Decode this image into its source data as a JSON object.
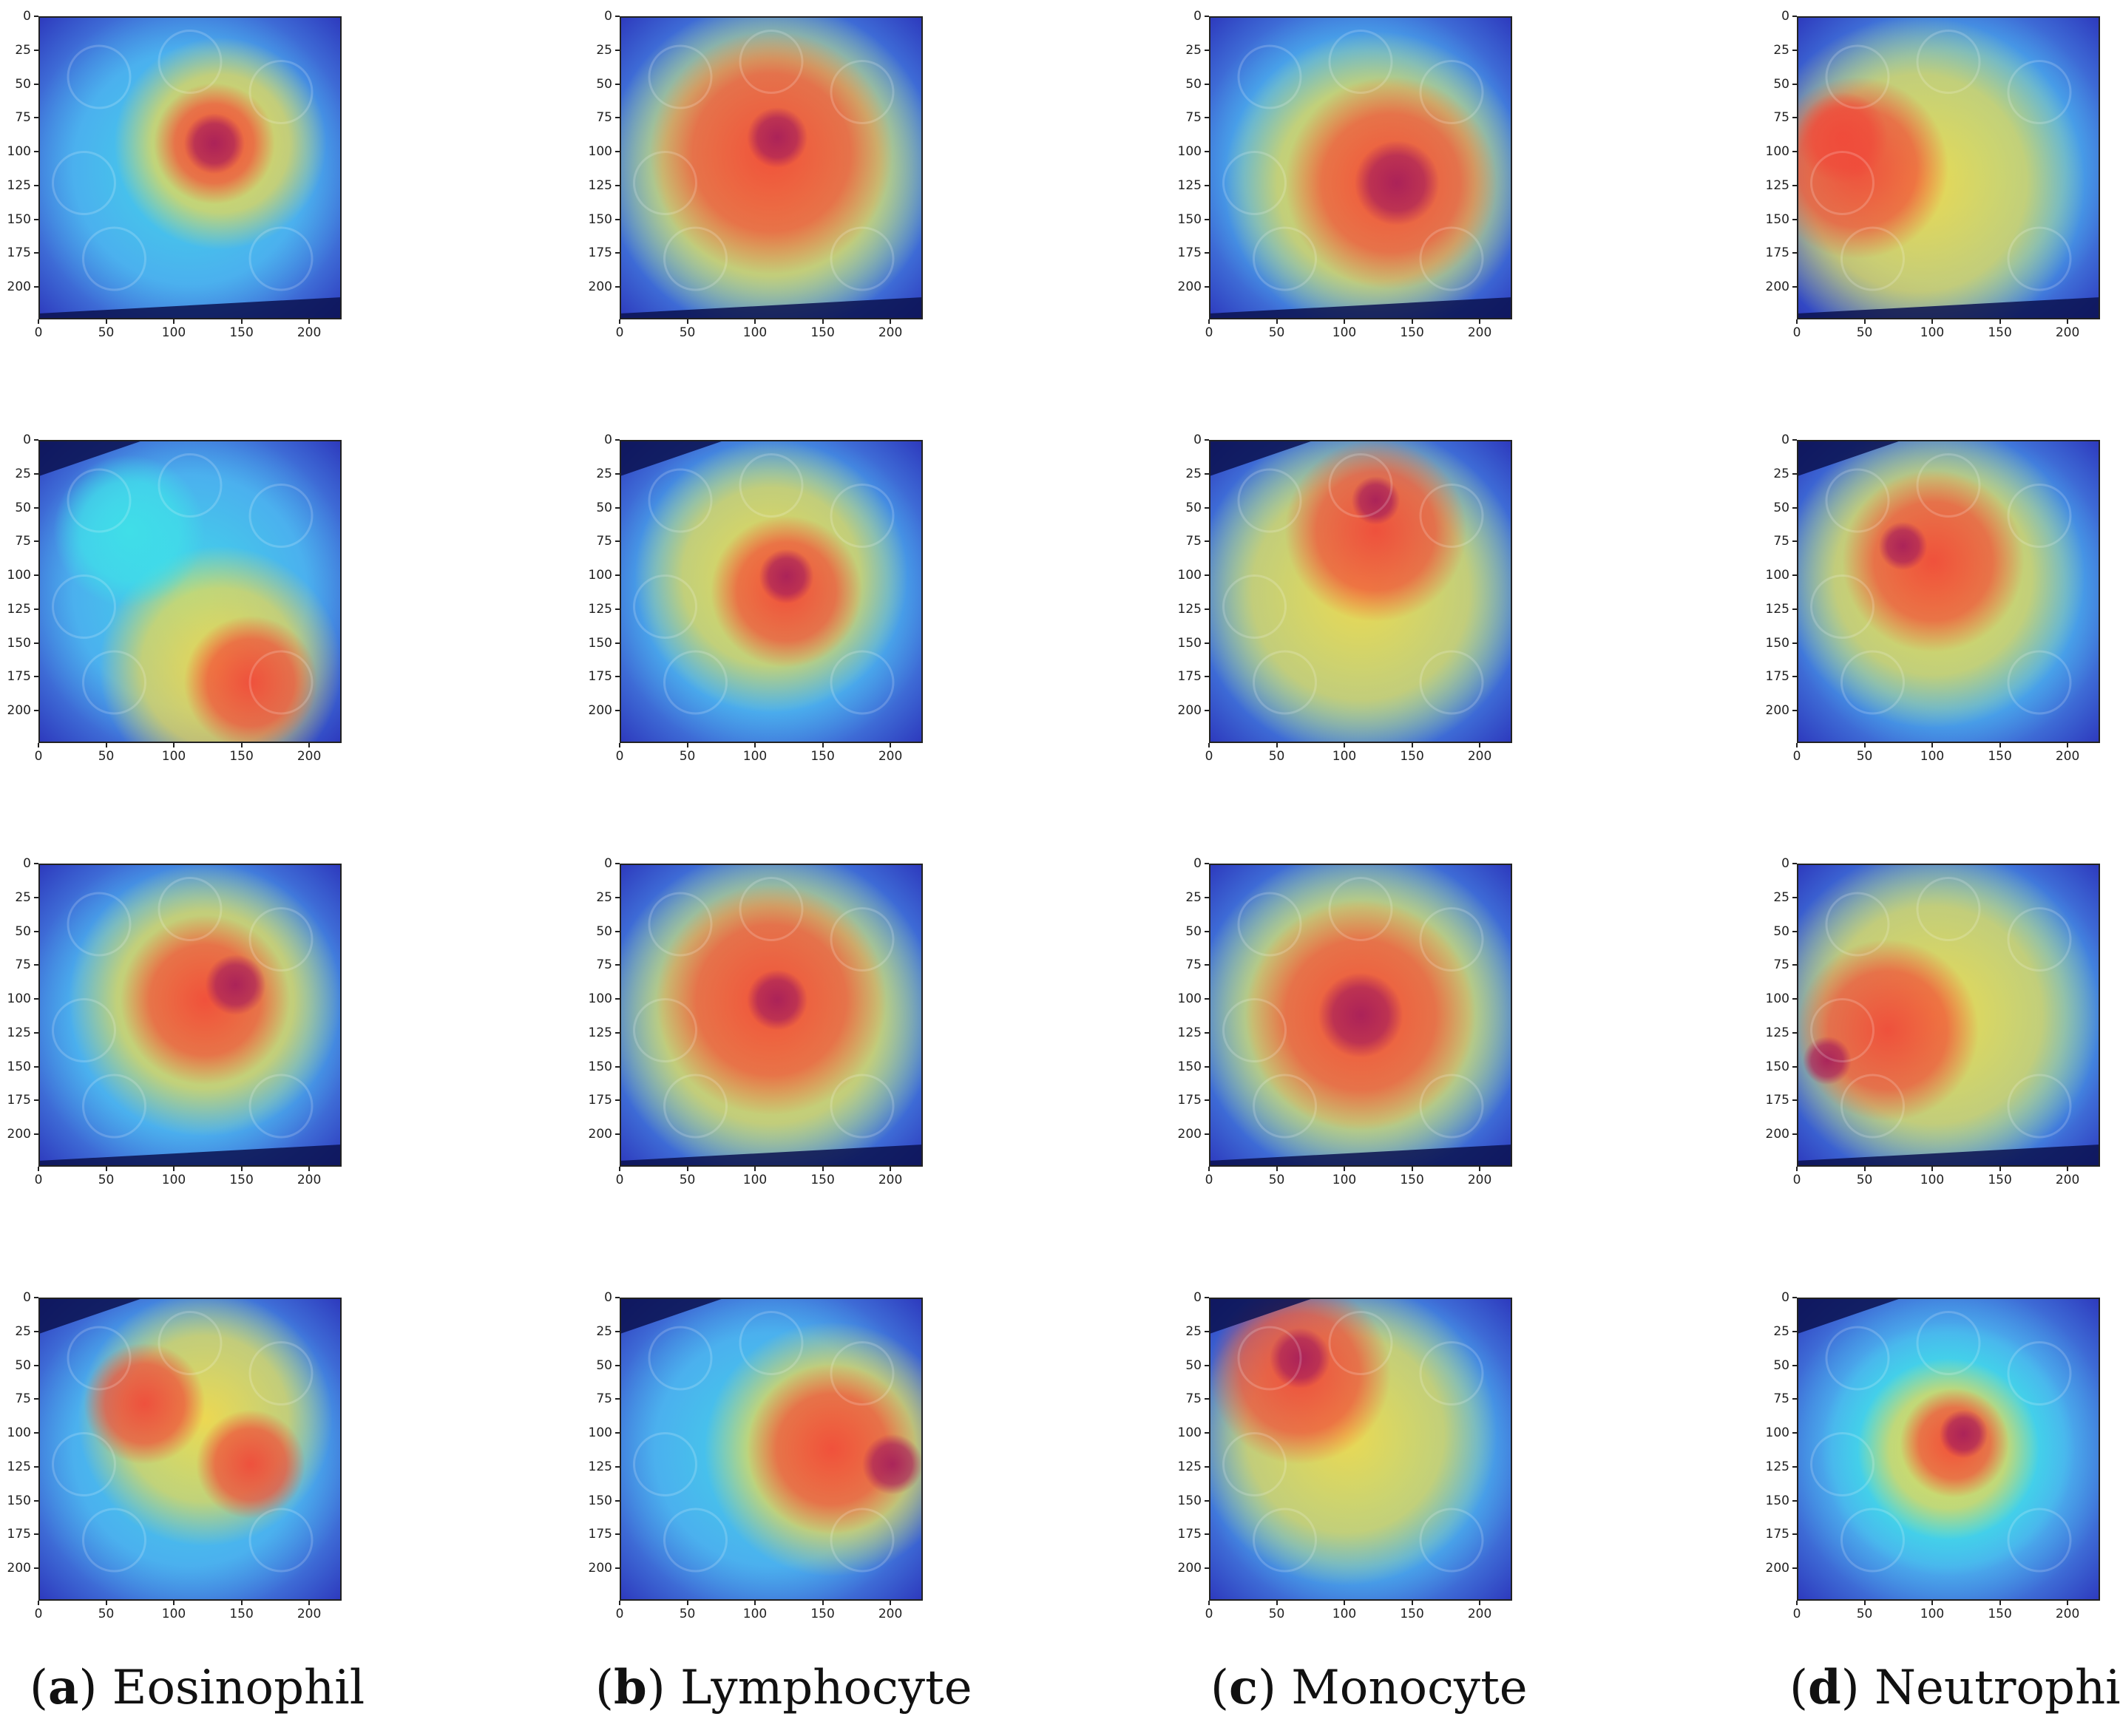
{
  "figure": {
    "columns": [
      {
        "letter": "a",
        "cell_type": "Eosinophil"
      },
      {
        "letter": "b",
        "cell_type": "Lymphocyte"
      },
      {
        "letter": "c",
        "cell_type": "Monocyte"
      },
      {
        "letter": "d",
        "cell_type": "Neutrophil"
      }
    ],
    "rows": 4,
    "axis": {
      "x_ticks": [
        "0",
        "50",
        "100",
        "150",
        "200"
      ],
      "y_ticks": [
        "0",
        "25",
        "50",
        "75",
        "100",
        "125",
        "150",
        "175",
        "200"
      ],
      "range": [
        0,
        224
      ]
    },
    "colors": {
      "cold": "#2a2fb8",
      "cool": "#4fa0f0",
      "cyan": "#3fe0e8",
      "warm": "#f5d84a",
      "hot": "#f04a3a",
      "nucleus": "#a8205a",
      "dark": "#0a1250"
    }
  }
}
